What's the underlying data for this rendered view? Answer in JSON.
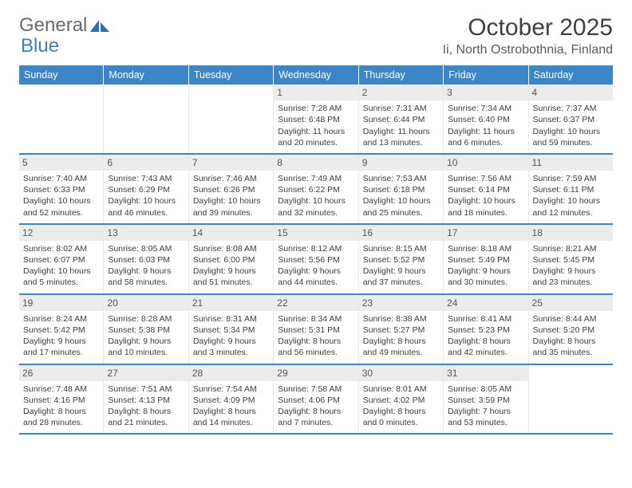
{
  "logo": {
    "text1": "General",
    "text2": "Blue"
  },
  "title": "October 2025",
  "location": "Ii, North Ostrobothnia, Finland",
  "colors": {
    "header_blue": "#3b86c7",
    "logo_gray": "#6a6a6a",
    "logo_blue": "#3b7fbf",
    "daynum_bg": "#ececec",
    "text": "#3d3d3d",
    "border_blue": "#3b86c7"
  },
  "days_of_week": [
    "Sunday",
    "Monday",
    "Tuesday",
    "Wednesday",
    "Thursday",
    "Friday",
    "Saturday"
  ],
  "weeks": [
    [
      null,
      null,
      null,
      {
        "n": "1",
        "sr": "Sunrise: 7:28 AM",
        "ss": "Sunset: 6:48 PM",
        "d1": "Daylight: 11 hours",
        "d2": "and 20 minutes."
      },
      {
        "n": "2",
        "sr": "Sunrise: 7:31 AM",
        "ss": "Sunset: 6:44 PM",
        "d1": "Daylight: 11 hours",
        "d2": "and 13 minutes."
      },
      {
        "n": "3",
        "sr": "Sunrise: 7:34 AM",
        "ss": "Sunset: 6:40 PM",
        "d1": "Daylight: 11 hours",
        "d2": "and 6 minutes."
      },
      {
        "n": "4",
        "sr": "Sunrise: 7:37 AM",
        "ss": "Sunset: 6:37 PM",
        "d1": "Daylight: 10 hours",
        "d2": "and 59 minutes."
      }
    ],
    [
      {
        "n": "5",
        "sr": "Sunrise: 7:40 AM",
        "ss": "Sunset: 6:33 PM",
        "d1": "Daylight: 10 hours",
        "d2": "and 52 minutes."
      },
      {
        "n": "6",
        "sr": "Sunrise: 7:43 AM",
        "ss": "Sunset: 6:29 PM",
        "d1": "Daylight: 10 hours",
        "d2": "and 46 minutes."
      },
      {
        "n": "7",
        "sr": "Sunrise: 7:46 AM",
        "ss": "Sunset: 6:26 PM",
        "d1": "Daylight: 10 hours",
        "d2": "and 39 minutes."
      },
      {
        "n": "8",
        "sr": "Sunrise: 7:49 AM",
        "ss": "Sunset: 6:22 PM",
        "d1": "Daylight: 10 hours",
        "d2": "and 32 minutes."
      },
      {
        "n": "9",
        "sr": "Sunrise: 7:53 AM",
        "ss": "Sunset: 6:18 PM",
        "d1": "Daylight: 10 hours",
        "d2": "and 25 minutes."
      },
      {
        "n": "10",
        "sr": "Sunrise: 7:56 AM",
        "ss": "Sunset: 6:14 PM",
        "d1": "Daylight: 10 hours",
        "d2": "and 18 minutes."
      },
      {
        "n": "11",
        "sr": "Sunrise: 7:59 AM",
        "ss": "Sunset: 6:11 PM",
        "d1": "Daylight: 10 hours",
        "d2": "and 12 minutes."
      }
    ],
    [
      {
        "n": "12",
        "sr": "Sunrise: 8:02 AM",
        "ss": "Sunset: 6:07 PM",
        "d1": "Daylight: 10 hours",
        "d2": "and 5 minutes."
      },
      {
        "n": "13",
        "sr": "Sunrise: 8:05 AM",
        "ss": "Sunset: 6:03 PM",
        "d1": "Daylight: 9 hours",
        "d2": "and 58 minutes."
      },
      {
        "n": "14",
        "sr": "Sunrise: 8:08 AM",
        "ss": "Sunset: 6:00 PM",
        "d1": "Daylight: 9 hours",
        "d2": "and 51 minutes."
      },
      {
        "n": "15",
        "sr": "Sunrise: 8:12 AM",
        "ss": "Sunset: 5:56 PM",
        "d1": "Daylight: 9 hours",
        "d2": "and 44 minutes."
      },
      {
        "n": "16",
        "sr": "Sunrise: 8:15 AM",
        "ss": "Sunset: 5:52 PM",
        "d1": "Daylight: 9 hours",
        "d2": "and 37 minutes."
      },
      {
        "n": "17",
        "sr": "Sunrise: 8:18 AM",
        "ss": "Sunset: 5:49 PM",
        "d1": "Daylight: 9 hours",
        "d2": "and 30 minutes."
      },
      {
        "n": "18",
        "sr": "Sunrise: 8:21 AM",
        "ss": "Sunset: 5:45 PM",
        "d1": "Daylight: 9 hours",
        "d2": "and 23 minutes."
      }
    ],
    [
      {
        "n": "19",
        "sr": "Sunrise: 8:24 AM",
        "ss": "Sunset: 5:42 PM",
        "d1": "Daylight: 9 hours",
        "d2": "and 17 minutes."
      },
      {
        "n": "20",
        "sr": "Sunrise: 8:28 AM",
        "ss": "Sunset: 5:38 PM",
        "d1": "Daylight: 9 hours",
        "d2": "and 10 minutes."
      },
      {
        "n": "21",
        "sr": "Sunrise: 8:31 AM",
        "ss": "Sunset: 5:34 PM",
        "d1": "Daylight: 9 hours",
        "d2": "and 3 minutes."
      },
      {
        "n": "22",
        "sr": "Sunrise: 8:34 AM",
        "ss": "Sunset: 5:31 PM",
        "d1": "Daylight: 8 hours",
        "d2": "and 56 minutes."
      },
      {
        "n": "23",
        "sr": "Sunrise: 8:38 AM",
        "ss": "Sunset: 5:27 PM",
        "d1": "Daylight: 8 hours",
        "d2": "and 49 minutes."
      },
      {
        "n": "24",
        "sr": "Sunrise: 8:41 AM",
        "ss": "Sunset: 5:23 PM",
        "d1": "Daylight: 8 hours",
        "d2": "and 42 minutes."
      },
      {
        "n": "25",
        "sr": "Sunrise: 8:44 AM",
        "ss": "Sunset: 5:20 PM",
        "d1": "Daylight: 8 hours",
        "d2": "and 35 minutes."
      }
    ],
    [
      {
        "n": "26",
        "sr": "Sunrise: 7:48 AM",
        "ss": "Sunset: 4:16 PM",
        "d1": "Daylight: 8 hours",
        "d2": "and 28 minutes."
      },
      {
        "n": "27",
        "sr": "Sunrise: 7:51 AM",
        "ss": "Sunset: 4:13 PM",
        "d1": "Daylight: 8 hours",
        "d2": "and 21 minutes."
      },
      {
        "n": "28",
        "sr": "Sunrise: 7:54 AM",
        "ss": "Sunset: 4:09 PM",
        "d1": "Daylight: 8 hours",
        "d2": "and 14 minutes."
      },
      {
        "n": "29",
        "sr": "Sunrise: 7:58 AM",
        "ss": "Sunset: 4:06 PM",
        "d1": "Daylight: 8 hours",
        "d2": "and 7 minutes."
      },
      {
        "n": "30",
        "sr": "Sunrise: 8:01 AM",
        "ss": "Sunset: 4:02 PM",
        "d1": "Daylight: 8 hours",
        "d2": "and 0 minutes."
      },
      {
        "n": "31",
        "sr": "Sunrise: 8:05 AM",
        "ss": "Sunset: 3:59 PM",
        "d1": "Daylight: 7 hours",
        "d2": "and 53 minutes."
      },
      null
    ]
  ]
}
